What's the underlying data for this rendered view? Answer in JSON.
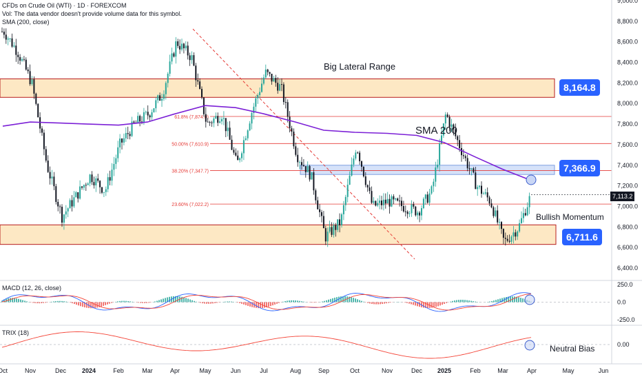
{
  "header": {
    "title": "CFDs on Crude Oil (WTI) · 1D · FOREXCOM",
    "vol_note": "Vol: The data vendor doesn't provide volume data for this symbol.",
    "sma_label": "SMA (200, close)"
  },
  "chart_data": [
    {
      "type": "candlestick",
      "ylim": [
        6300,
        9000
      ],
      "y_ticks": [
        "9,000.0",
        "8,800.0",
        "8,600.0",
        "8,400.0",
        "8,200.0",
        "8,000.0",
        "7,800.0",
        "7,600.0",
        "7,400.0",
        "7,200.0",
        "7,000.0",
        "6,800.0",
        "6,600.0",
        "6,400.0"
      ],
      "x_ticks": [
        "Oct",
        "Nov",
        "Dec",
        "2024",
        "Feb",
        "Mar",
        "Apr",
        "May",
        "Jun",
        "Jul",
        "Aug",
        "Sep",
        "Oct",
        "Nov",
        "Dec",
        "2025",
        "Feb",
        "Mar",
        "Apr",
        "May",
        "Jun"
      ],
      "price_path": [
        [
          "Oct",
          8700
        ],
        [
          "Oct",
          8500
        ],
        [
          "Nov",
          8200
        ],
        [
          "Nov",
          7400
        ],
        [
          "Dec",
          6900
        ],
        [
          "Dec",
          7100
        ],
        [
          "2024",
          7300
        ],
        [
          "2024",
          7150
        ],
        [
          "Feb",
          7600
        ],
        [
          "Feb",
          7800
        ],
        [
          "Mar",
          7900
        ],
        [
          "Mar",
          8100
        ],
        [
          "Apr",
          8600
        ],
        [
          "Apr",
          8450
        ],
        [
          "May",
          7800
        ],
        [
          "May",
          7900
        ],
        [
          "Jun",
          7400
        ],
        [
          "Jun",
          7900
        ],
        [
          "Jul",
          8300
        ],
        [
          "Jul",
          8150
        ],
        [
          "Aug",
          7500
        ],
        [
          "Aug",
          7300
        ],
        [
          "Sep",
          6700
        ],
        [
          "Sep",
          6850
        ],
        [
          "Oct",
          7600
        ],
        [
          "Oct",
          7000
        ],
        [
          "Nov",
          7050
        ],
        [
          "Nov",
          7000
        ],
        [
          "Dec",
          6950
        ],
        [
          "Dec",
          7150
        ],
        [
          "2025",
          7900
        ],
        [
          "2025",
          7550
        ],
        [
          "Feb",
          7200
        ],
        [
          "Feb",
          7050
        ],
        [
          "Mar",
          6650
        ],
        [
          "Mar",
          6800
        ],
        [
          "Apr",
          7113.2
        ]
      ],
      "sma200_path": [
        [
          "Oct",
          7780
        ],
        [
          "Nov",
          7820
        ],
        [
          "Dec",
          7810
        ],
        [
          "2024",
          7800
        ],
        [
          "Feb",
          7790
        ],
        [
          "Mar",
          7820
        ],
        [
          "Apr",
          7900
        ],
        [
          "May",
          7980
        ],
        [
          "Jun",
          7960
        ],
        [
          "Jul",
          7900
        ],
        [
          "Aug",
          7820
        ],
        [
          "Sep",
          7740
        ],
        [
          "Oct",
          7720
        ],
        [
          "Nov",
          7710
        ],
        [
          "Dec",
          7690
        ],
        [
          "2025",
          7620
        ],
        [
          "Feb",
          7480
        ],
        [
          "Mar",
          7360
        ],
        [
          "Apr",
          7250
        ]
      ],
      "last_price": "7,113.2",
      "zones": [
        {
          "label": "Big Lateral Range",
          "from": 8060,
          "to": 8240
        },
        {
          "label": "",
          "from": 6630,
          "to": 6820
        },
        {
          "label": "",
          "from": 7310,
          "to": 7400
        }
      ],
      "fib_levels": [
        {
          "label": "61.8% (7,874.0)",
          "value": 7874.0
        },
        {
          "label": "50.00% (7,610.9)",
          "value": 7610.9
        },
        {
          "label": "38.20% (7,347.7)",
          "value": 7347.7
        },
        {
          "label": "23.60% (7,022.2)",
          "value": 7022.2
        }
      ],
      "annotations": [
        {
          "text": "Big Lateral Range"
        },
        {
          "text": "SMA 200"
        },
        {
          "text": "Bullish Momentum"
        }
      ],
      "badges": [
        "8,164.8",
        "7,366.9",
        "6,711.6"
      ]
    },
    {
      "type": "macd",
      "title": "MACD (12, 26, close)",
      "y_ticks": [
        "250.0",
        "0.0",
        "-250.0"
      ]
    },
    {
      "type": "line",
      "title": "TRIX (18)",
      "y_ticks": [
        "0.00"
      ],
      "annotations": [
        {
          "text": "Neutral Bias"
        }
      ]
    }
  ],
  "colors": {
    "up": "#26a69a",
    "down": "#131722",
    "sma": "#7b1fd6",
    "zone": "#fde8c4",
    "zone_border": "#d32f2f",
    "fib": "#e53935",
    "blue_zone": "#d6e2f9",
    "badge": "#2962ff",
    "macd": "#2962ff",
    "signal": "#f44336",
    "trix": "#f44336"
  }
}
